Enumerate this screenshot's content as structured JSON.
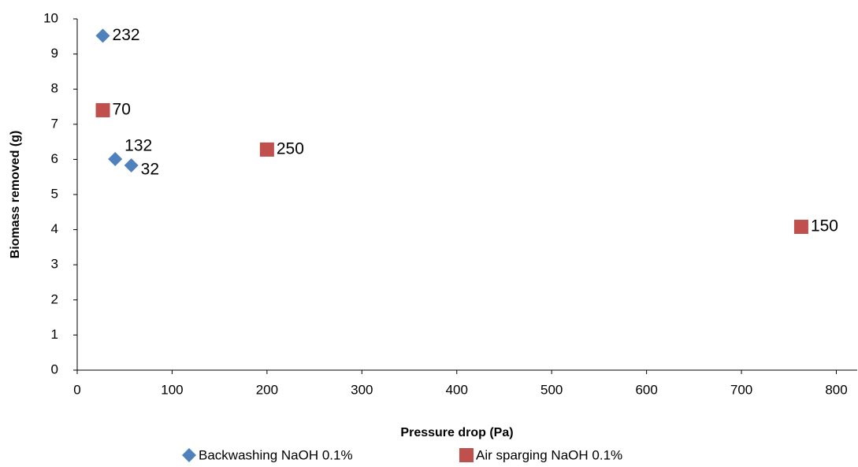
{
  "chart_data": {
    "type": "scatter",
    "x_label": "Pressure drop (Pa)",
    "y_label": "Biomass removed (g)",
    "xlim": [
      0,
      822
    ],
    "xticks": [
      0,
      100,
      200,
      300,
      400,
      500,
      600,
      700,
      800
    ],
    "ylim": [
      0,
      10
    ],
    "yticks": [
      0,
      1,
      2,
      3,
      4,
      5,
      6,
      7,
      8,
      9,
      10
    ],
    "grid": false,
    "legend": "bottom",
    "series": [
      {
        "name": "Backwashing NaOH 0.1%",
        "color": "#4f81bd",
        "marker": "diamond",
        "x": [
          27,
          40,
          57
        ],
        "values": [
          9.52,
          6.01,
          5.83
        ],
        "labels": [
          "232",
          "132",
          "32"
        ]
      },
      {
        "name": "Air sparging NaOH 0.1%",
        "color": "#c0504d",
        "marker": "square",
        "x": [
          27,
          200,
          763
        ],
        "values": [
          7.4,
          6.28,
          4.08
        ],
        "labels": [
          "70",
          "250",
          "150"
        ]
      }
    ]
  }
}
